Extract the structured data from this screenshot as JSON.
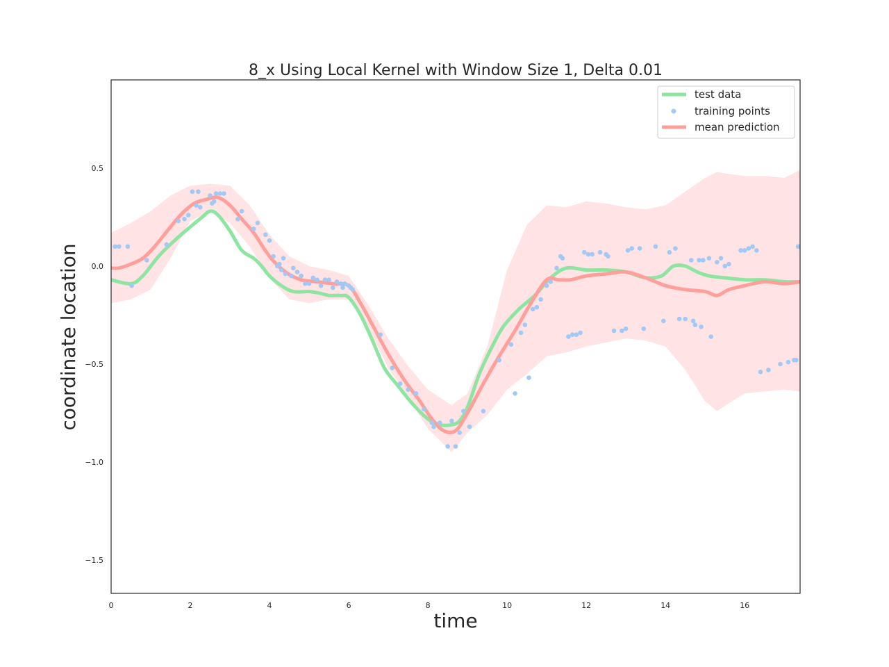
{
  "chart_data": {
    "type": "line",
    "title": "8_x Using Local Kernel with Window Size 1, Delta 0.01",
    "xlabel": "time",
    "ylabel": "coordinate location",
    "xlim": [
      0,
      17.4
    ],
    "ylim": [
      -1.67,
      0.95
    ],
    "xticks": [
      0,
      2,
      4,
      6,
      8,
      10,
      12,
      14,
      16
    ],
    "xtick_labels": [
      "0",
      "2",
      "4",
      "6",
      "8",
      "10",
      "12",
      "14",
      "16"
    ],
    "yticks": [
      0.5,
      0.0,
      -0.5,
      -1.0,
      -1.5
    ],
    "ytick_labels": [
      "0.5",
      "0.0",
      "−0.5",
      "−1.0",
      "−1.5"
    ],
    "grid": false,
    "legend_position": "top-right",
    "colors": {
      "test": "#8de5a1",
      "training": "#a1c9f4",
      "prediction": "#ff9f9b",
      "band": "#ffe3e5",
      "axes": "#262626"
    },
    "legend": [
      {
        "label": "test data",
        "kind": "line",
        "color": "#8de5a1"
      },
      {
        "label": "training points",
        "kind": "dot",
        "color": "#a1c9f4"
      },
      {
        "label": "mean prediction",
        "kind": "line",
        "color": "#ff9f9b"
      }
    ],
    "series": [
      {
        "name": "test data",
        "kind": "line",
        "x": [
          0,
          0.5,
          0.8,
          1.2,
          1.6,
          2.0,
          2.3,
          2.5,
          2.7,
          3.0,
          3.3,
          3.6,
          3.8,
          4.0,
          4.3,
          4.6,
          5.0,
          5.3,
          5.5,
          5.8,
          6.0,
          6.3,
          6.6,
          6.9,
          7.2,
          7.6,
          8.0,
          8.3,
          8.6,
          8.8,
          9.0,
          9.3,
          9.6,
          9.9,
          10.3,
          10.7,
          11.1,
          11.5,
          12.0,
          12.5,
          13.0,
          13.5,
          13.9,
          14.2,
          14.5,
          14.8,
          15.1,
          15.5,
          16.0,
          16.5,
          17.0,
          17.4
        ],
        "y": [
          -0.07,
          -0.09,
          -0.05,
          0.05,
          0.13,
          0.2,
          0.25,
          0.28,
          0.26,
          0.18,
          0.08,
          0.04,
          0.0,
          -0.05,
          -0.1,
          -0.13,
          -0.13,
          -0.14,
          -0.15,
          -0.15,
          -0.16,
          -0.25,
          -0.38,
          -0.52,
          -0.6,
          -0.7,
          -0.78,
          -0.81,
          -0.81,
          -0.79,
          -0.72,
          -0.55,
          -0.42,
          -0.31,
          -0.22,
          -0.15,
          -0.06,
          -0.01,
          -0.02,
          -0.02,
          -0.03,
          -0.06,
          -0.05,
          0.0,
          0.0,
          -0.03,
          -0.05,
          -0.06,
          -0.07,
          -0.07,
          -0.08,
          -0.08
        ]
      },
      {
        "name": "mean prediction",
        "kind": "line",
        "x": [
          0,
          0.2,
          0.5,
          0.8,
          1.1,
          1.5,
          1.8,
          2.1,
          2.4,
          2.7,
          3.0,
          3.3,
          3.6,
          4.0,
          4.4,
          4.8,
          5.2,
          5.6,
          6.0,
          6.3,
          6.6,
          7.0,
          7.4,
          7.8,
          8.1,
          8.4,
          8.7,
          9.0,
          9.4,
          9.8,
          10.2,
          10.6,
          11.0,
          11.3,
          11.6,
          12.0,
          12.5,
          13.0,
          13.5,
          14.0,
          14.5,
          15.0,
          15.3,
          15.6,
          16.0,
          16.5,
          17.0,
          17.4
        ],
        "y": [
          -0.01,
          -0.01,
          0.01,
          0.04,
          0.1,
          0.2,
          0.27,
          0.32,
          0.34,
          0.35,
          0.31,
          0.24,
          0.17,
          0.05,
          -0.03,
          -0.07,
          -0.08,
          -0.09,
          -0.1,
          -0.19,
          -0.3,
          -0.45,
          -0.58,
          -0.69,
          -0.78,
          -0.84,
          -0.84,
          -0.75,
          -0.6,
          -0.46,
          -0.33,
          -0.19,
          -0.07,
          -0.07,
          -0.07,
          -0.05,
          -0.04,
          -0.03,
          -0.06,
          -0.1,
          -0.12,
          -0.13,
          -0.15,
          -0.12,
          -0.1,
          -0.08,
          -0.09,
          -0.08
        ]
      },
      {
        "name": "confidence band",
        "kind": "band",
        "x": [
          0,
          0.5,
          1.0,
          1.5,
          2.0,
          2.5,
          3.0,
          3.5,
          4.0,
          4.5,
          5.0,
          5.5,
          6.0,
          6.5,
          7.0,
          7.5,
          8.0,
          8.6,
          9.0,
          9.5,
          10.0,
          10.5,
          11.0,
          11.5,
          12.0,
          12.5,
          13.0,
          13.5,
          14.0,
          14.5,
          15.0,
          15.3,
          15.6,
          16.0,
          16.5,
          17.0,
          17.4
        ],
        "upper": [
          0.17,
          0.22,
          0.28,
          0.36,
          0.41,
          0.42,
          0.41,
          0.31,
          0.16,
          0.05,
          0.0,
          -0.02,
          -0.05,
          -0.2,
          -0.37,
          -0.51,
          -0.63,
          -0.71,
          -0.65,
          -0.41,
          -0.02,
          0.21,
          0.31,
          0.3,
          0.33,
          0.32,
          0.3,
          0.29,
          0.31,
          0.38,
          0.45,
          0.48,
          0.47,
          0.46,
          0.46,
          0.45,
          0.49
        ],
        "lower": [
          -0.19,
          -0.17,
          -0.12,
          0.04,
          0.23,
          0.28,
          0.22,
          0.1,
          -0.06,
          -0.17,
          -0.19,
          -0.17,
          -0.17,
          -0.32,
          -0.52,
          -0.67,
          -0.83,
          -0.95,
          -0.85,
          -0.76,
          -0.63,
          -0.55,
          -0.46,
          -0.44,
          -0.41,
          -0.39,
          -0.37,
          -0.38,
          -0.41,
          -0.53,
          -0.69,
          -0.74,
          -0.7,
          -0.65,
          -0.64,
          -0.63,
          -0.64
        ]
      },
      {
        "name": "training points",
        "kind": "scatter",
        "points": [
          [
            0.1,
            0.1
          ],
          [
            0.2,
            0.1
          ],
          [
            0.42,
            0.1
          ],
          [
            0.52,
            -0.1
          ],
          [
            0.9,
            0.03
          ],
          [
            1.4,
            0.11
          ],
          [
            1.7,
            0.23
          ],
          [
            1.85,
            0.24
          ],
          [
            1.95,
            0.26
          ],
          [
            2.05,
            0.38
          ],
          [
            2.15,
            0.31
          ],
          [
            2.2,
            0.38
          ],
          [
            2.25,
            0.3
          ],
          [
            2.5,
            0.36
          ],
          [
            2.55,
            0.32
          ],
          [
            2.6,
            0.33
          ],
          [
            2.65,
            0.37
          ],
          [
            2.75,
            0.37
          ],
          [
            2.85,
            0.37
          ],
          [
            3.2,
            0.24
          ],
          [
            3.3,
            0.28
          ],
          [
            3.6,
            0.19
          ],
          [
            3.7,
            0.22
          ],
          [
            3.9,
            0.16
          ],
          [
            4.0,
            0.13
          ],
          [
            4.1,
            0.05
          ],
          [
            4.2,
            0.0
          ],
          [
            4.25,
            0.01
          ],
          [
            4.3,
            -0.02
          ],
          [
            4.35,
            0.04
          ],
          [
            4.4,
            -0.04
          ],
          [
            4.55,
            -0.05
          ],
          [
            4.6,
            -0.01
          ],
          [
            4.7,
            -0.03
          ],
          [
            4.8,
            -0.05
          ],
          [
            4.9,
            -0.09
          ],
          [
            5.0,
            -0.09
          ],
          [
            5.1,
            -0.06
          ],
          [
            5.2,
            -0.07
          ],
          [
            5.3,
            -0.1
          ],
          [
            5.4,
            -0.07
          ],
          [
            5.5,
            -0.07
          ],
          [
            5.6,
            -0.11
          ],
          [
            5.7,
            -0.08
          ],
          [
            5.8,
            -0.09
          ],
          [
            5.85,
            -0.11
          ],
          [
            5.9,
            -0.09
          ],
          [
            6.0,
            -0.1
          ],
          [
            6.05,
            -0.11
          ],
          [
            6.1,
            -0.12
          ],
          [
            6.8,
            -0.35
          ],
          [
            7.1,
            -0.52
          ],
          [
            7.3,
            -0.6
          ],
          [
            7.5,
            -0.63
          ],
          [
            7.7,
            -0.65
          ],
          [
            7.9,
            -0.73
          ],
          [
            8.1,
            -0.8
          ],
          [
            8.15,
            -0.82
          ],
          [
            8.3,
            -0.8
          ],
          [
            8.5,
            -0.92
          ],
          [
            8.6,
            -0.79
          ],
          [
            8.7,
            -0.92
          ],
          [
            8.8,
            -0.85
          ],
          [
            8.9,
            -0.74
          ],
          [
            9.05,
            -0.82
          ],
          [
            9.4,
            -0.74
          ],
          [
            9.8,
            -0.48
          ],
          [
            10.1,
            -0.4
          ],
          [
            10.2,
            -0.65
          ],
          [
            10.35,
            -0.34
          ],
          [
            10.45,
            -0.3
          ],
          [
            10.55,
            -0.57
          ],
          [
            10.65,
            -0.22
          ],
          [
            10.75,
            -0.21
          ],
          [
            10.85,
            -0.17
          ],
          [
            11.0,
            -0.1
          ],
          [
            11.1,
            -0.08
          ],
          [
            11.25,
            -0.01
          ],
          [
            11.35,
            0.05
          ],
          [
            11.4,
            0.04
          ],
          [
            11.55,
            -0.36
          ],
          [
            11.65,
            -0.35
          ],
          [
            11.75,
            -0.35
          ],
          [
            11.85,
            -0.34
          ],
          [
            11.95,
            0.07
          ],
          [
            12.05,
            0.06
          ],
          [
            12.15,
            0.06
          ],
          [
            12.35,
            0.07
          ],
          [
            12.5,
            0.06
          ],
          [
            12.55,
            0.05
          ],
          [
            12.7,
            -0.33
          ],
          [
            12.9,
            -0.33
          ],
          [
            13.0,
            -0.32
          ],
          [
            13.05,
            0.08
          ],
          [
            13.15,
            0.09
          ],
          [
            13.35,
            0.09
          ],
          [
            13.45,
            -0.32
          ],
          [
            13.75,
            0.1
          ],
          [
            13.95,
            -0.28
          ],
          [
            14.1,
            0.07
          ],
          [
            14.25,
            0.09
          ],
          [
            14.35,
            -0.27
          ],
          [
            14.5,
            -0.27
          ],
          [
            14.65,
            0.03
          ],
          [
            14.7,
            -0.28
          ],
          [
            14.75,
            -0.3
          ],
          [
            14.85,
            0.03
          ],
          [
            14.9,
            -0.31
          ],
          [
            14.95,
            0.03
          ],
          [
            15.1,
            0.04
          ],
          [
            15.15,
            -0.36
          ],
          [
            15.3,
            0.02
          ],
          [
            15.4,
            0.04
          ],
          [
            15.5,
            0.0
          ],
          [
            15.6,
            0.01
          ],
          [
            15.9,
            0.08
          ],
          [
            16.0,
            0.08
          ],
          [
            16.1,
            0.09
          ],
          [
            16.2,
            0.1
          ],
          [
            16.3,
            0.08
          ],
          [
            16.4,
            -0.54
          ],
          [
            16.6,
            -0.53
          ],
          [
            16.9,
            -0.5
          ],
          [
            17.1,
            -0.49
          ],
          [
            17.25,
            -0.48
          ],
          [
            17.3,
            -0.48
          ],
          [
            17.35,
            0.1
          ],
          [
            17.4,
            0.1
          ]
        ]
      }
    ]
  }
}
